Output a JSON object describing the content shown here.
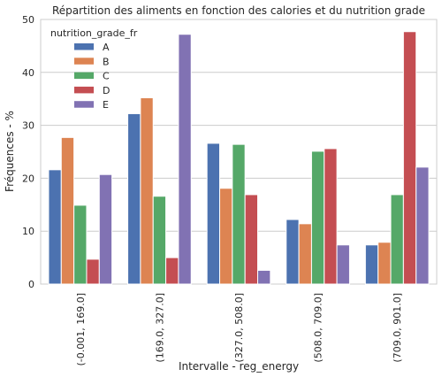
{
  "chart_data": {
    "type": "bar",
    "title": "Répartition des aliments en fonction des calories et du nutrition grade",
    "xlabel": "Intervalle - reg_energy",
    "ylabel": "Fréquences - %",
    "ylim": [
      0,
      50
    ],
    "yticks": [
      "0",
      "10",
      "20",
      "30",
      "40",
      "50"
    ],
    "categories": [
      "(-0.001, 169.0]",
      "(169.0, 327.0]",
      "(327.0, 508.0]",
      "(508.0, 709.0]",
      "(709.0, 901.0]"
    ],
    "legend": {
      "title": "nutrition_grade_fr",
      "placement": "top-left"
    },
    "grid": true,
    "series": [
      {
        "name": "A",
        "color": "#4c72b0",
        "values": [
          21.6,
          32.2,
          26.6,
          12.2,
          7.4
        ]
      },
      {
        "name": "B",
        "color": "#dd8452",
        "values": [
          27.7,
          35.2,
          18.1,
          11.4,
          7.9
        ]
      },
      {
        "name": "C",
        "color": "#55a868",
        "values": [
          14.9,
          16.6,
          26.4,
          25.1,
          16.9
        ]
      },
      {
        "name": "D",
        "color": "#c44e52",
        "values": [
          4.7,
          5.0,
          16.9,
          25.6,
          47.7
        ]
      },
      {
        "name": "E",
        "color": "#8172b3",
        "values": [
          20.7,
          47.2,
          2.6,
          7.4,
          22.1
        ]
      }
    ]
  }
}
